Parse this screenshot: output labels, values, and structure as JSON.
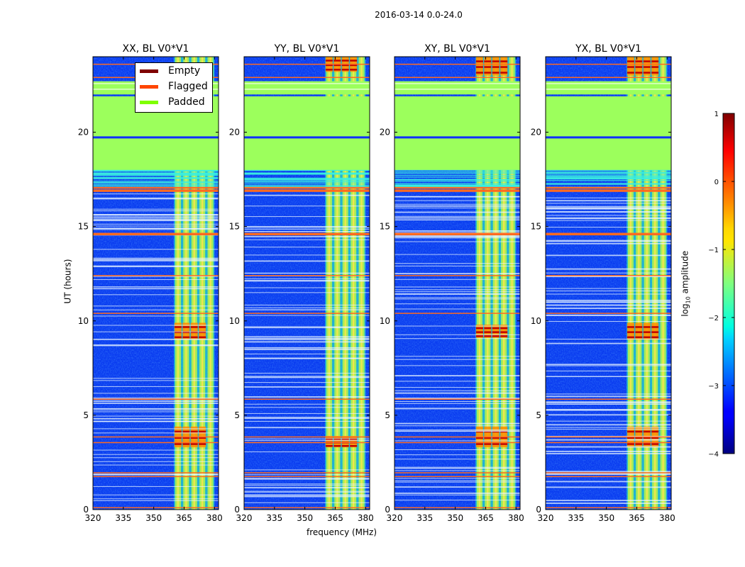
{
  "figure": {
    "suptitle": "2016-03-14 0.0-24.0",
    "xlabel": "frequency (MHz)",
    "ylabel": "UT (hours)",
    "colorbar_label_prefix": "log",
    "colorbar_label_sub": "10",
    "colorbar_label_suffix": " amplitude"
  },
  "legend": [
    {
      "label": "Empty",
      "color": "#7f0000"
    },
    {
      "label": "Flagged",
      "color": "#ff4500"
    },
    {
      "label": "Padded",
      "color": "#7fff00"
    }
  ],
  "chart_data": {
    "type": "heatmap",
    "title": "2016-03-14 0.0-24.0",
    "panels": [
      {
        "title": "XX, BL V0*V1",
        "bright_bands_ut": [
          [
            3.3,
            4.4
          ],
          [
            9.0,
            9.9
          ]
        ]
      },
      {
        "title": "YY, BL V0*V1",
        "bright_bands_ut": [
          [
            3.3,
            3.9
          ],
          [
            23.2,
            24.0
          ]
        ]
      },
      {
        "title": "XY, BL V0*V1",
        "bright_bands_ut": [
          [
            3.3,
            4.4
          ],
          [
            9.1,
            9.8
          ],
          [
            23.0,
            24.0
          ]
        ]
      },
      {
        "title": "YX, BL V0*V1",
        "bright_bands_ut": [
          [
            3.3,
            4.4
          ],
          [
            9.0,
            9.9
          ],
          [
            23.0,
            24.0
          ]
        ]
      }
    ],
    "xlabel": "frequency (MHz)",
    "ylabel": "UT (hours)",
    "xlim": [
      320,
      382
    ],
    "ylim": [
      0,
      24
    ],
    "xticks": [
      320,
      335,
      350,
      365,
      380
    ],
    "yticks": [
      0,
      5,
      10,
      15,
      20
    ],
    "active_band_mhz": [
      360,
      380
    ],
    "bright_channel_columns_mhz": [
      362,
      366,
      370,
      374,
      378
    ],
    "padded_ut_ranges": [
      [
        19.7,
        21.9
      ],
      [
        18.0,
        19.7
      ],
      [
        22.0,
        22.7
      ]
    ],
    "flagged_ut": [
      0.1,
      1.75,
      1.95,
      3.55,
      3.85,
      5.85,
      10.4,
      12.4,
      14.6,
      16.9,
      17.05,
      22.9,
      23.6
    ],
    "padded_partial_ut": [
      22.3,
      22.6
    ],
    "colorbar": {
      "label": "log10 amplitude",
      "vmin": -4,
      "vmax": 1,
      "ticks": [
        -4,
        -3,
        -2,
        -1,
        0,
        1
      ],
      "tick_labels": [
        "−4",
        "−3",
        "−2",
        "−1",
        "0",
        "1"
      ]
    }
  }
}
